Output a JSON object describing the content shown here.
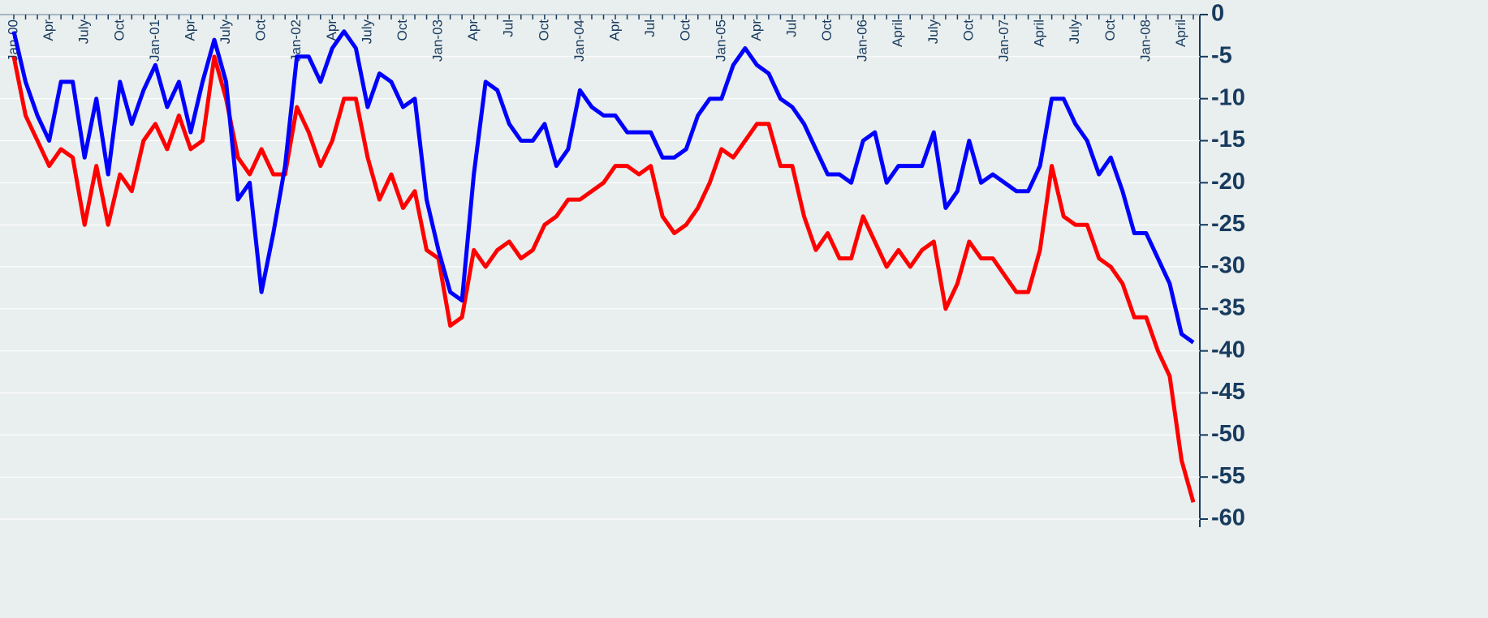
{
  "chart_data": {
    "type": "line",
    "categories": [
      "Jan-00",
      null,
      null,
      "Apr",
      null,
      null,
      "July",
      null,
      null,
      "Oct",
      null,
      null,
      "Jan-01",
      null,
      null,
      "Apr",
      null,
      null,
      "July",
      null,
      null,
      "Oct",
      null,
      null,
      "Jan-02",
      null,
      null,
      "Apr",
      null,
      null,
      "July",
      null,
      null,
      "Oct",
      null,
      null,
      "Jan-03",
      null,
      null,
      "Apr",
      null,
      null,
      "Jul",
      null,
      null,
      "Oct",
      null,
      null,
      "Jan-04",
      null,
      null,
      "Apr",
      null,
      null,
      "Jul",
      null,
      null,
      "Oct",
      null,
      null,
      "Jan-05",
      null,
      null,
      "Apr",
      null,
      null,
      "Jul",
      null,
      null,
      "Oct",
      null,
      null,
      "Jan-06",
      null,
      null,
      "April",
      null,
      null,
      "July",
      null,
      null,
      "Oct",
      null,
      null,
      "Jan-07",
      null,
      null,
      "April",
      null,
      null,
      "July",
      null,
      null,
      "Oct",
      null,
      null,
      "Jan-08",
      null,
      null,
      "April",
      null
    ],
    "series": [
      {
        "color": "#0000ff",
        "values": [
          -2,
          -8,
          -12,
          -15,
          -8,
          -8,
          -17,
          -10,
          -19,
          -8,
          -13,
          -9,
          -6,
          -11,
          -8,
          -14,
          -8,
          -3,
          -8,
          -22,
          -20,
          -33,
          -26,
          -18,
          -5,
          -5,
          -8,
          -4,
          -2,
          -4,
          -11,
          -7,
          -8,
          -11,
          -10,
          -22,
          -28,
          -33,
          -34,
          -19,
          -8,
          -9,
          -13,
          -15,
          -15,
          -13,
          -18,
          -16,
          -9,
          -11,
          -12,
          -12,
          -14,
          -14,
          -14,
          -17,
          -17,
          -16,
          -12,
          -10,
          -10,
          -6,
          -4,
          -6,
          -7,
          -10,
          -11,
          -13,
          -16,
          -19,
          -19,
          -20,
          -15,
          -14,
          -20,
          -18,
          -18,
          -18,
          -14,
          -23,
          -21,
          -15,
          -20,
          -19,
          -20,
          -21,
          -21,
          -18,
          -10,
          -10,
          -13,
          -15,
          -19,
          -17,
          -21,
          -26,
          -26,
          -29,
          -32,
          -38,
          -39
        ]
      },
      {
        "color": "#ff0000",
        "values": [
          -5,
          -12,
          -15,
          -18,
          -16,
          -17,
          -25,
          -18,
          -25,
          -19,
          -21,
          -15,
          -13,
          -16,
          -12,
          -16,
          -15,
          -5,
          -10,
          -17,
          -19,
          -16,
          -19,
          -19,
          -11,
          -14,
          -18,
          -15,
          -10,
          -10,
          -17,
          -22,
          -19,
          -23,
          -21,
          -28,
          -29,
          -37,
          -36,
          -28,
          -30,
          -28,
          -27,
          -29,
          -28,
          -25,
          -24,
          -22,
          -22,
          -21,
          -20,
          -18,
          -18,
          -19,
          -18,
          -24,
          -26,
          -25,
          -23,
          -20,
          -16,
          -17,
          -15,
          -13,
          -13,
          -18,
          -18,
          -24,
          -28,
          -26,
          -29,
          -29,
          -24,
          -27,
          -30,
          -28,
          -30,
          -28,
          -27,
          -35,
          -32,
          -27,
          -29,
          -29,
          -31,
          -33,
          -33,
          -28,
          -18,
          -24,
          -25,
          -25,
          -29,
          -30,
          -32,
          -36,
          -36,
          -40,
          -43,
          -53,
          -58
        ]
      }
    ],
    "ylim": [
      -60,
      0
    ],
    "yticks": [
      0,
      -5,
      -10,
      -15,
      -20,
      -25,
      -30,
      -35,
      -40,
      -45,
      -50,
      -55,
      -60
    ],
    "grid": true
  }
}
